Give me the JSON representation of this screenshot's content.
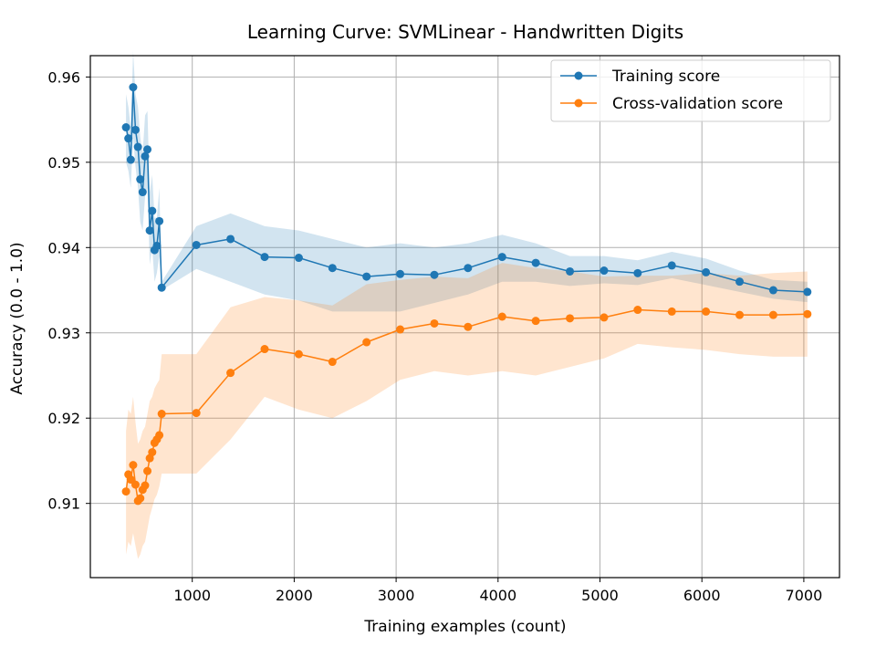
{
  "chart_data": {
    "type": "line",
    "title": "Learning Curve: SVMLinear - Handwritten Digits",
    "xlabel": "Training examples (count)",
    "ylabel": "Accuracy (0.0 - 1.0)",
    "xlim": [
      0,
      7350
    ],
    "ylim": [
      0.9013,
      0.9625
    ],
    "x_ticks": [
      1000,
      2000,
      3000,
      4000,
      5000,
      6000,
      7000
    ],
    "y_ticks": [
      0.91,
      0.92,
      0.93,
      0.94,
      0.95,
      0.96
    ],
    "x_tick_labels": [
      "1000",
      "2000",
      "3000",
      "4000",
      "5000",
      "6000",
      "7000"
    ],
    "y_tick_labels": [
      "0.91",
      "0.92",
      "0.93",
      "0.94",
      "0.95",
      "0.96"
    ],
    "grid": true,
    "legend_position": "top-right",
    "series": [
      {
        "name": "Training score",
        "color": "#1f77b4",
        "x": [
          350,
          373,
          397,
          420,
          443,
          467,
          490,
          513,
          537,
          560,
          583,
          607,
          630,
          653,
          677,
          700,
          1040,
          1375,
          1710,
          2045,
          2375,
          2710,
          3040,
          3375,
          3705,
          4040,
          4370,
          4705,
          5040,
          5370,
          5705,
          6040,
          6370,
          6700,
          7035
        ],
        "y": [
          0.9541,
          0.9528,
          0.9503,
          0.9588,
          0.9538,
          0.9518,
          0.948,
          0.9465,
          0.9507,
          0.9515,
          0.942,
          0.9443,
          0.9397,
          0.9402,
          0.9431,
          0.9353,
          0.9403,
          0.941,
          0.9389,
          0.9388,
          0.9376,
          0.9366,
          0.9369,
          0.9368,
          0.9376,
          0.9389,
          0.9382,
          0.9372,
          0.9373,
          0.937,
          0.9379,
          0.9371,
          0.936,
          0.935,
          0.9348
        ],
        "lower": [
          0.95,
          0.949,
          0.947,
          0.953,
          0.9495,
          0.947,
          0.943,
          0.942,
          0.946,
          0.947,
          0.938,
          0.94,
          0.936,
          0.937,
          0.939,
          0.935,
          0.9375,
          0.936,
          0.9345,
          0.9338,
          0.9325,
          0.9325,
          0.9325,
          0.9335,
          0.9345,
          0.936,
          0.936,
          0.9355,
          0.9358,
          0.9356,
          0.9364,
          0.9356,
          0.9348,
          0.934,
          0.9336
        ],
        "upper": [
          0.958,
          0.9565,
          0.954,
          0.963,
          0.958,
          0.9565,
          0.953,
          0.951,
          0.9555,
          0.956,
          0.9465,
          0.9485,
          0.9435,
          0.9435,
          0.947,
          0.936,
          0.9425,
          0.944,
          0.9425,
          0.942,
          0.941,
          0.94,
          0.9405,
          0.94,
          0.9405,
          0.9415,
          0.9405,
          0.939,
          0.939,
          0.9385,
          0.9395,
          0.9387,
          0.9373,
          0.9362,
          0.936
        ]
      },
      {
        "name": "Cross-validation score",
        "color": "#ff7f0e",
        "x": [
          350,
          373,
          397,
          420,
          443,
          467,
          490,
          513,
          537,
          560,
          583,
          607,
          630,
          653,
          677,
          700,
          1040,
          1375,
          1710,
          2045,
          2375,
          2710,
          3040,
          3375,
          3705,
          4040,
          4370,
          4705,
          5040,
          5370,
          5705,
          6040,
          6370,
          6700,
          7035
        ],
        "y": [
          0.9114,
          0.9134,
          0.9128,
          0.9145,
          0.9122,
          0.9103,
          0.9106,
          0.9116,
          0.9121,
          0.9138,
          0.9153,
          0.916,
          0.9171,
          0.9175,
          0.918,
          0.9205,
          0.9206,
          0.9253,
          0.9281,
          0.9275,
          0.9266,
          0.9289,
          0.9304,
          0.9311,
          0.9307,
          0.9319,
          0.9314,
          0.9317,
          0.9318,
          0.9327,
          0.9325,
          0.9325,
          0.9321,
          0.9321,
          0.9322
        ],
        "lower": [
          0.904,
          0.9055,
          0.905,
          0.9065,
          0.905,
          0.9035,
          0.904,
          0.905,
          0.9055,
          0.907,
          0.9085,
          0.9095,
          0.9105,
          0.911,
          0.912,
          0.9135,
          0.9135,
          0.9175,
          0.9225,
          0.921,
          0.92,
          0.922,
          0.9245,
          0.9255,
          0.925,
          0.9255,
          0.925,
          0.926,
          0.927,
          0.9287,
          0.9283,
          0.928,
          0.9275,
          0.9272,
          0.9272
        ],
        "upper": [
          0.9185,
          0.921,
          0.9205,
          0.9225,
          0.9195,
          0.917,
          0.9175,
          0.9185,
          0.919,
          0.9205,
          0.922,
          0.9225,
          0.9235,
          0.924,
          0.9245,
          0.9275,
          0.9275,
          0.933,
          0.9342,
          0.9338,
          0.9332,
          0.9357,
          0.9362,
          0.9366,
          0.9364,
          0.9382,
          0.9376,
          0.9372,
          0.9366,
          0.9367,
          0.9367,
          0.937,
          0.9367,
          0.937,
          0.9372
        ]
      }
    ]
  }
}
